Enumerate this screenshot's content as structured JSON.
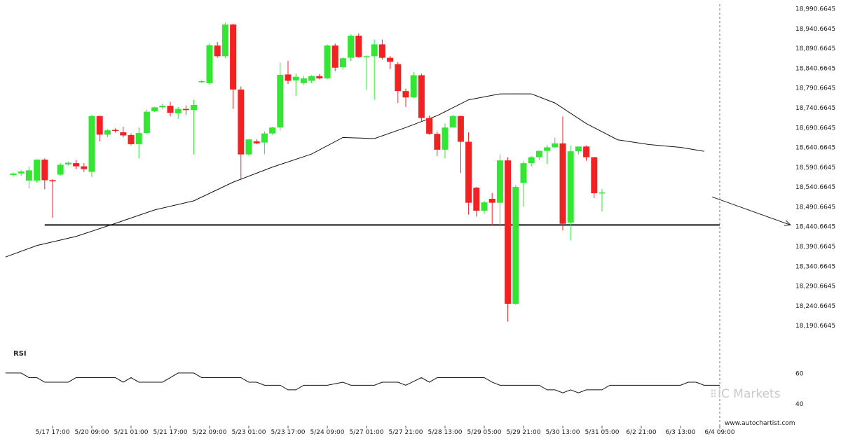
{
  "chart_data": {
    "type": "candlestick",
    "price_axis": {
      "tick_labels": [
        "18,990.6645",
        "18,940.6645",
        "18,890.6645",
        "18,840.6645",
        "18,790.6645",
        "18,740.6645",
        "18,690.6645",
        "18,640.6645",
        "18,590.6645",
        "18,540.6645",
        "18,490.6645",
        "18,440.6645",
        "18,390.6645",
        "18,340.6645",
        "18,290.6645",
        "18,240.6645",
        "18,190.6645"
      ],
      "ylim": [
        18165,
        19000
      ]
    },
    "time_axis": {
      "tick_labels": [
        "5/17 17:00",
        "5/20 09:00",
        "5/21 01:00",
        "5/21 17:00",
        "5/22 09:00",
        "5/23 01:00",
        "5/23 17:00",
        "5/24 09:00",
        "5/27 01:00",
        "5/27 21:00",
        "5/28 13:00",
        "5/29 05:00",
        "5/29 21:00",
        "5/30 13:00",
        "5/31 05:00",
        "6/2 21:00",
        "6/3 13:00",
        "6/4 09:00"
      ],
      "tick_candle_index": [
        5,
        10,
        15,
        20,
        25,
        30,
        35,
        40,
        45,
        50,
        55,
        60,
        65,
        70,
        75,
        80,
        85,
        90
      ]
    },
    "candles": [
      {
        "o": 18570,
        "h": 18576,
        "l": 18566,
        "c": 18574
      },
      {
        "o": 18574,
        "h": 18582,
        "l": 18568,
        "c": 18579
      },
      {
        "o": 18556,
        "h": 18592,
        "l": 18536,
        "c": 18582
      },
      {
        "o": 18556,
        "h": 18610,
        "l": 18551,
        "c": 18609
      },
      {
        "o": 18609,
        "h": 18612,
        "l": 18534,
        "c": 18557
      },
      {
        "o": 18557,
        "h": 18560,
        "l": 18462,
        "c": 18554
      },
      {
        "o": 18571,
        "h": 18600,
        "l": 18568,
        "c": 18596
      },
      {
        "o": 18597,
        "h": 18604,
        "l": 18594,
        "c": 18601
      },
      {
        "o": 18600,
        "h": 18608,
        "l": 18585,
        "c": 18592
      },
      {
        "o": 18592,
        "h": 18600,
        "l": 18578,
        "c": 18585
      },
      {
        "o": 18578,
        "h": 18722,
        "l": 18565,
        "c": 18719
      },
      {
        "o": 18719,
        "h": 18720,
        "l": 18655,
        "c": 18672
      },
      {
        "o": 18672,
        "h": 18686,
        "l": 18666,
        "c": 18683
      },
      {
        "o": 18684,
        "h": 18688,
        "l": 18677,
        "c": 18682
      },
      {
        "o": 18678,
        "h": 18692,
        "l": 18665,
        "c": 18670
      },
      {
        "o": 18671,
        "h": 18675,
        "l": 18645,
        "c": 18648
      },
      {
        "o": 18648,
        "h": 18690,
        "l": 18612,
        "c": 18676
      },
      {
        "o": 18676,
        "h": 18735,
        "l": 18674,
        "c": 18730
      },
      {
        "o": 18731,
        "h": 18742,
        "l": 18729,
        "c": 18741
      },
      {
        "o": 18741,
        "h": 18750,
        "l": 18736,
        "c": 18745
      },
      {
        "o": 18745,
        "h": 18755,
        "l": 18718,
        "c": 18727
      },
      {
        "o": 18726,
        "h": 18742,
        "l": 18712,
        "c": 18737
      },
      {
        "o": 18737,
        "h": 18746,
        "l": 18722,
        "c": 18734
      },
      {
        "o": 18734,
        "h": 18760,
        "l": 18622,
        "c": 18747
      },
      {
        "o": 18805,
        "h": 18810,
        "l": 18802,
        "c": 18807
      },
      {
        "o": 18802,
        "h": 18902,
        "l": 18798,
        "c": 18898
      },
      {
        "o": 18897,
        "h": 18906,
        "l": 18866,
        "c": 18870
      },
      {
        "o": 18870,
        "h": 18955,
        "l": 18865,
        "c": 18950
      },
      {
        "o": 18950,
        "h": 18952,
        "l": 18737,
        "c": 18786
      },
      {
        "o": 18786,
        "h": 18794,
        "l": 18557,
        "c": 18622
      },
      {
        "o": 18622,
        "h": 18661,
        "l": 18619,
        "c": 18660
      },
      {
        "o": 18655,
        "h": 18660,
        "l": 18648,
        "c": 18650
      },
      {
        "o": 18652,
        "h": 18680,
        "l": 18622,
        "c": 18675
      },
      {
        "o": 18675,
        "h": 18692,
        "l": 18672,
        "c": 18690
      },
      {
        "o": 18690,
        "h": 18854,
        "l": 18682,
        "c": 18823
      },
      {
        "o": 18824,
        "h": 18858,
        "l": 18800,
        "c": 18808
      },
      {
        "o": 18809,
        "h": 18826,
        "l": 18770,
        "c": 18818
      },
      {
        "o": 18802,
        "h": 18820,
        "l": 18798,
        "c": 18814
      },
      {
        "o": 18808,
        "h": 18822,
        "l": 18802,
        "c": 18820
      },
      {
        "o": 18820,
        "h": 18825,
        "l": 18812,
        "c": 18814
      },
      {
        "o": 18814,
        "h": 18900,
        "l": 18812,
        "c": 18897
      },
      {
        "o": 18897,
        "h": 18902,
        "l": 18833,
        "c": 18841
      },
      {
        "o": 18842,
        "h": 18868,
        "l": 18836,
        "c": 18865
      },
      {
        "o": 18866,
        "h": 18925,
        "l": 18858,
        "c": 18922
      },
      {
        "o": 18922,
        "h": 18928,
        "l": 18866,
        "c": 18868
      },
      {
        "o": 18868,
        "h": 18872,
        "l": 18785,
        "c": 18870
      },
      {
        "o": 18870,
        "h": 18912,
        "l": 18760,
        "c": 18900
      },
      {
        "o": 18900,
        "h": 18912,
        "l": 18862,
        "c": 18866
      },
      {
        "o": 18866,
        "h": 18870,
        "l": 18838,
        "c": 18856
      },
      {
        "o": 18850,
        "h": 18855,
        "l": 18752,
        "c": 18782
      },
      {
        "o": 18782,
        "h": 18788,
        "l": 18742,
        "c": 18766
      },
      {
        "o": 18766,
        "h": 18830,
        "l": 18764,
        "c": 18822
      },
      {
        "o": 18822,
        "h": 18826,
        "l": 18705,
        "c": 18714
      },
      {
        "o": 18714,
        "h": 18720,
        "l": 18672,
        "c": 18674
      },
      {
        "o": 18674,
        "h": 18680,
        "l": 18618,
        "c": 18634
      },
      {
        "o": 18634,
        "h": 18700,
        "l": 18612,
        "c": 18690
      },
      {
        "o": 18690,
        "h": 18722,
        "l": 18690,
        "c": 18719
      },
      {
        "o": 18719,
        "h": 18720,
        "l": 18575,
        "c": 18654
      },
      {
        "o": 18654,
        "h": 18678,
        "l": 18470,
        "c": 18500
      },
      {
        "o": 18538,
        "h": 18540,
        "l": 18465,
        "c": 18480
      },
      {
        "o": 18480,
        "h": 18505,
        "l": 18472,
        "c": 18501
      },
      {
        "o": 18510,
        "h": 18525,
        "l": 18442,
        "c": 18500
      },
      {
        "o": 18500,
        "h": 18622,
        "l": 18440,
        "c": 18607
      },
      {
        "o": 18607,
        "h": 18615,
        "l": 18200,
        "c": 18245
      },
      {
        "o": 18245,
        "h": 18545,
        "l": 18242,
        "c": 18540
      },
      {
        "o": 18550,
        "h": 18605,
        "l": 18490,
        "c": 18600
      },
      {
        "o": 18600,
        "h": 18618,
        "l": 18592,
        "c": 18615
      },
      {
        "o": 18615,
        "h": 18632,
        "l": 18608,
        "c": 18631
      },
      {
        "o": 18631,
        "h": 18645,
        "l": 18598,
        "c": 18640
      },
      {
        "o": 18640,
        "h": 18665,
        "l": 18638,
        "c": 18650
      },
      {
        "o": 18650,
        "h": 18718,
        "l": 18430,
        "c": 18447
      },
      {
        "o": 18450,
        "h": 18645,
        "l": 18405,
        "c": 18630
      },
      {
        "o": 18630,
        "h": 18640,
        "l": 18622,
        "c": 18642
      },
      {
        "o": 18642,
        "h": 18645,
        "l": 18606,
        "c": 18615
      },
      {
        "o": 18615,
        "h": 18616,
        "l": 18512,
        "c": 18524
      },
      {
        "o": 18524,
        "h": 18535,
        "l": 18478,
        "c": 18526
      }
    ],
    "candle_index": [
      0,
      1,
      2,
      3,
      4,
      5,
      6,
      7,
      8,
      9,
      10,
      11,
      12,
      13,
      14,
      15,
      16,
      17,
      18,
      19,
      20,
      21,
      22,
      23,
      24,
      25,
      26,
      27,
      28,
      29,
      30,
      31,
      32,
      33,
      34,
      35,
      36,
      37,
      38,
      39,
      40,
      41,
      42,
      43,
      44,
      45,
      46,
      47,
      48,
      49,
      50,
      51,
      52,
      53,
      54,
      55,
      56,
      57,
      58,
      59,
      60,
      61,
      62,
      63,
      64,
      65,
      66,
      67,
      68,
      69,
      70,
      71,
      72,
      73,
      74,
      75
    ],
    "moving_average": [
      [
        -1,
        18363
      ],
      [
        3,
        18392
      ],
      [
        8,
        18415
      ],
      [
        13,
        18448
      ],
      [
        18,
        18482
      ],
      [
        23,
        18505
      ],
      [
        28,
        18552
      ],
      [
        33,
        18590
      ],
      [
        38,
        18623
      ],
      [
        42,
        18665
      ],
      [
        46,
        18662
      ],
      [
        50,
        18690
      ],
      [
        54,
        18720
      ],
      [
        58,
        18760
      ],
      [
        62,
        18775
      ],
      [
        66,
        18775
      ],
      [
        69,
        18752
      ],
      [
        73,
        18700
      ],
      [
        77,
        18659
      ],
      [
        81,
        18647
      ],
      [
        85,
        18640
      ],
      [
        88,
        18630
      ]
    ],
    "support_level": 18444,
    "support_line_candle_range": [
      4,
      90
    ],
    "projection": [
      [
        89,
        18515
      ],
      [
        99,
        18444
      ]
    ],
    "current_marker_candle": 90,
    "rsi": {
      "title": "RSI",
      "tick_labels": [
        "60",
        "40"
      ],
      "ylim": [
        37,
        68
      ],
      "values": [
        [
          -1,
          60
        ],
        [
          1,
          60
        ],
        [
          2,
          57
        ],
        [
          3,
          57
        ],
        [
          4,
          54
        ],
        [
          5,
          54
        ],
        [
          7,
          54
        ],
        [
          8,
          57
        ],
        [
          9,
          57
        ],
        [
          13,
          57
        ],
        [
          14,
          54
        ],
        [
          15,
          57
        ],
        [
          16,
          54
        ],
        [
          17,
          54
        ],
        [
          19,
          54
        ],
        [
          20,
          57
        ],
        [
          21,
          60
        ],
        [
          23,
          60
        ],
        [
          24,
          57
        ],
        [
          29,
          57
        ],
        [
          30,
          54
        ],
        [
          31,
          54
        ],
        [
          32,
          52
        ],
        [
          34,
          52
        ],
        [
          35,
          49
        ],
        [
          36,
          49
        ],
        [
          37,
          52
        ],
        [
          40,
          52
        ],
        [
          42,
          54
        ],
        [
          43,
          52
        ],
        [
          46,
          52
        ],
        [
          47,
          54
        ],
        [
          49,
          54
        ],
        [
          50,
          52
        ],
        [
          52,
          57
        ],
        [
          53,
          54
        ],
        [
          54,
          57
        ],
        [
          60,
          57
        ],
        [
          61,
          54
        ],
        [
          62,
          52
        ],
        [
          67,
          52
        ],
        [
          68,
          49
        ],
        [
          69,
          49
        ],
        [
          70,
          47
        ],
        [
          71,
          49
        ],
        [
          72,
          47
        ],
        [
          73,
          49
        ],
        [
          75,
          49
        ],
        [
          76,
          52
        ],
        [
          79,
          52
        ],
        [
          80,
          52
        ],
        [
          81,
          52
        ],
        [
          82,
          52
        ],
        [
          83,
          52
        ],
        [
          85,
          52
        ],
        [
          86,
          54
        ],
        [
          87,
          54
        ],
        [
          88,
          52
        ],
        [
          90,
          52
        ]
      ]
    },
    "grid": false,
    "legend": "none"
  },
  "branding": {
    "logo_text": "IC Markets",
    "source_url": "www.autochartist.com"
  },
  "colors": {
    "bull": "#33e633",
    "bear": "#f22222",
    "ma_line": "#111111",
    "support_line": "#111111",
    "rsi_line": "#111111",
    "axis_text": "#222222"
  }
}
